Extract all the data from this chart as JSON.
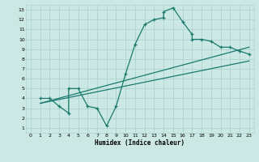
{
  "xlabel": "Humidex (Indice chaleur)",
  "bg_color": "#cce8e4",
  "line_color": "#1a7a6e",
  "grid_color": "#aed4d0",
  "xlim": [
    -0.5,
    23.5
  ],
  "ylim": [
    0.5,
    13.5
  ],
  "xticks": [
    0,
    1,
    2,
    3,
    4,
    5,
    6,
    7,
    8,
    9,
    10,
    11,
    12,
    13,
    14,
    15,
    16,
    17,
    18,
    19,
    20,
    21,
    22,
    23
  ],
  "yticks": [
    1,
    2,
    3,
    4,
    5,
    6,
    7,
    8,
    9,
    10,
    11,
    12,
    13
  ],
  "jagged": {
    "x": [
      1,
      2,
      3,
      4,
      4,
      5,
      6,
      7,
      8,
      9,
      10,
      11,
      12,
      13,
      14,
      14,
      15,
      16,
      17,
      17,
      18,
      19,
      20,
      21,
      22,
      23
    ],
    "y": [
      4.0,
      4.0,
      3.2,
      2.5,
      5.0,
      5.0,
      3.2,
      3.0,
      1.2,
      3.2,
      6.5,
      9.5,
      11.5,
      12.0,
      12.2,
      12.8,
      13.2,
      11.8,
      10.5,
      10.0,
      10.0,
      9.8,
      9.2,
      9.2,
      8.8,
      8.5
    ]
  },
  "line1": {
    "x": [
      1,
      23
    ],
    "y": [
      3.5,
      9.2
    ]
  },
  "line2": {
    "x": [
      1,
      23
    ],
    "y": [
      3.5,
      7.8
    ]
  }
}
